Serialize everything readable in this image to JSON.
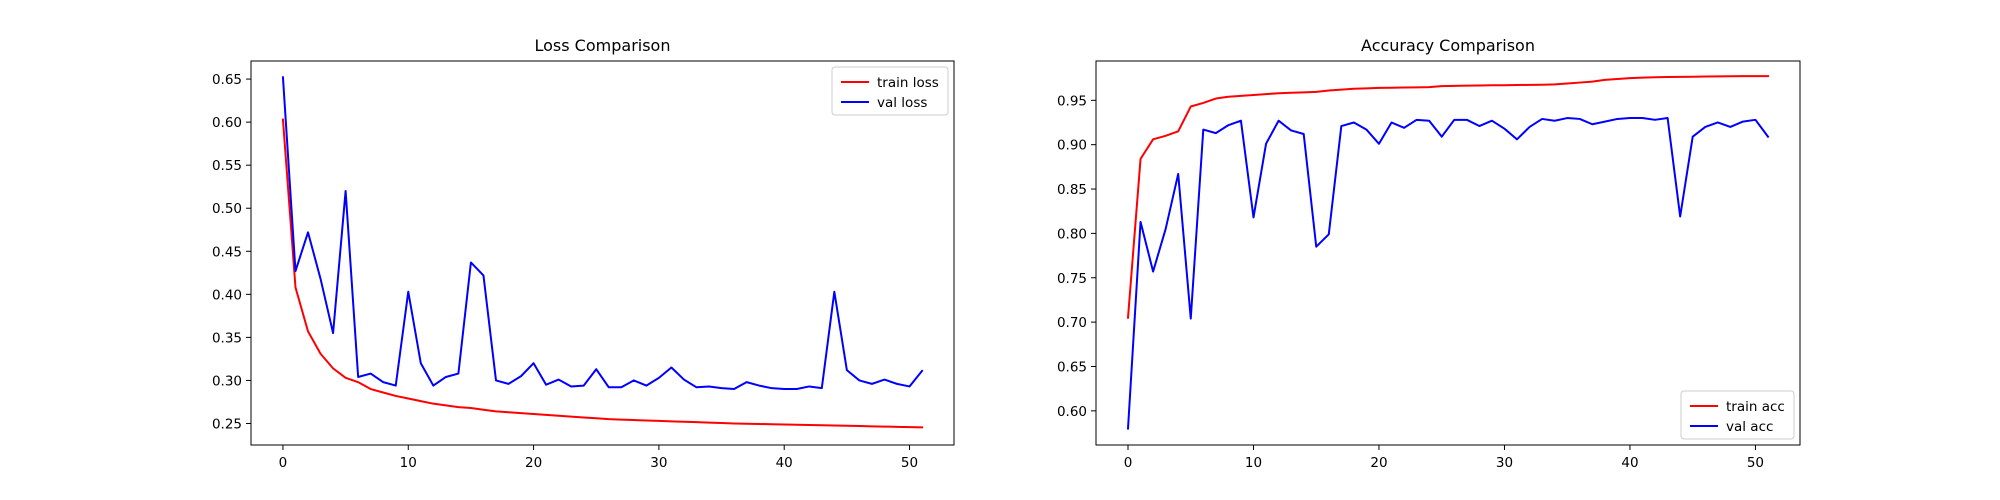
{
  "chart_data": [
    {
      "type": "line",
      "title": "Loss Comparison",
      "xlabel": "",
      "ylabel": "",
      "xlim": [
        -2.55,
        53.55
      ],
      "ylim": [
        0.225,
        0.671
      ],
      "xticks": [
        0,
        10,
        20,
        30,
        40,
        50
      ],
      "yticks": [
        0.25,
        0.3,
        0.35,
        0.4,
        0.45,
        0.5,
        0.55,
        0.6,
        0.65
      ],
      "legend_position": "top-right",
      "series": [
        {
          "name": "train loss",
          "color": "#ff0000",
          "values": [
            0.603,
            0.408,
            0.357,
            0.331,
            0.314,
            0.303,
            0.298,
            0.29,
            0.286,
            0.282,
            0.279,
            0.276,
            0.273,
            0.271,
            0.269,
            0.268,
            0.266,
            0.264,
            0.263,
            0.262,
            0.261,
            0.26,
            0.259,
            0.258,
            0.257,
            0.256,
            0.255,
            0.2545,
            0.254,
            0.2535,
            0.253,
            0.2525,
            0.252,
            0.2515,
            0.251,
            0.2505,
            0.25,
            0.2497,
            0.2494,
            0.2491,
            0.2488,
            0.2485,
            0.2482,
            0.2479,
            0.2476,
            0.2473,
            0.247,
            0.2467,
            0.2464,
            0.2461,
            0.2458,
            0.2455
          ]
        },
        {
          "name": "val loss",
          "color": "#0000ff",
          "values": [
            0.652,
            0.427,
            0.472,
            0.418,
            0.355,
            0.52,
            0.304,
            0.308,
            0.298,
            0.294,
            0.403,
            0.32,
            0.294,
            0.304,
            0.308,
            0.437,
            0.422,
            0.3,
            0.296,
            0.305,
            0.32,
            0.295,
            0.301,
            0.293,
            0.294,
            0.313,
            0.292,
            0.292,
            0.3,
            0.294,
            0.303,
            0.315,
            0.301,
            0.292,
            0.293,
            0.291,
            0.29,
            0.298,
            0.294,
            0.291,
            0.29,
            0.29,
            0.293,
            0.291,
            0.403,
            0.312,
            0.3,
            0.296,
            0.301,
            0.296,
            0.293,
            0.311
          ]
        }
      ]
    },
    {
      "type": "line",
      "title": "Accuracy Comparison",
      "xlabel": "",
      "ylabel": "",
      "xlim": [
        -2.55,
        53.55
      ],
      "ylim": [
        0.5615,
        0.9943
      ],
      "xticks": [
        0,
        10,
        20,
        30,
        40,
        50
      ],
      "yticks": [
        0.6,
        0.65,
        0.7,
        0.75,
        0.8,
        0.85,
        0.9,
        0.95
      ],
      "legend_position": "bottom-right",
      "series": [
        {
          "name": "train acc",
          "color": "#ff0000",
          "values": [
            0.705,
            0.884,
            0.906,
            0.91,
            0.915,
            0.943,
            0.947,
            0.952,
            0.954,
            0.955,
            0.956,
            0.957,
            0.958,
            0.9585,
            0.959,
            0.9595,
            0.961,
            0.962,
            0.963,
            0.9635,
            0.964,
            0.9642,
            0.9644,
            0.9646,
            0.9648,
            0.966,
            0.9663,
            0.9665,
            0.9667,
            0.9669,
            0.967,
            0.9672,
            0.9674,
            0.9676,
            0.968,
            0.969,
            0.97,
            0.971,
            0.973,
            0.974,
            0.975,
            0.9755,
            0.976,
            0.9762,
            0.9764,
            0.9766,
            0.9768,
            0.977,
            0.9771,
            0.9772,
            0.9772,
            0.9772
          ]
        },
        {
          "name": "val acc",
          "color": "#0000ff",
          "values": [
            0.58,
            0.813,
            0.757,
            0.805,
            0.867,
            0.704,
            0.917,
            0.913,
            0.922,
            0.927,
            0.818,
            0.901,
            0.927,
            0.916,
            0.912,
            0.785,
            0.799,
            0.921,
            0.925,
            0.917,
            0.901,
            0.925,
            0.919,
            0.928,
            0.927,
            0.909,
            0.928,
            0.928,
            0.921,
            0.927,
            0.918,
            0.906,
            0.92,
            0.929,
            0.927,
            0.93,
            0.929,
            0.923,
            0.926,
            0.929,
            0.93,
            0.93,
            0.928,
            0.93,
            0.819,
            0.909,
            0.92,
            0.925,
            0.92,
            0.926,
            0.928,
            0.909
          ]
        }
      ]
    }
  ]
}
